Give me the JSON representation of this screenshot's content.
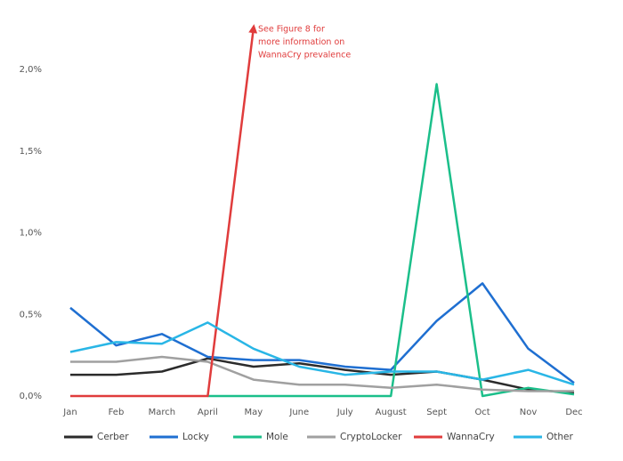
{
  "chart_data": {
    "type": "line",
    "annotation": [
      "See Figure 8 for",
      "more information on",
      "WannaCry prevalence"
    ],
    "categories": [
      "Jan",
      "Feb",
      "March",
      "April",
      "May",
      "June",
      "July",
      "August",
      "Sept",
      "Oct",
      "Nov",
      "Dec"
    ],
    "ylim": [
      0,
      2.3
    ],
    "yticks": [
      {
        "value": 0,
        "label": "0,0%"
      },
      {
        "value": 0.5,
        "label": "0,5%"
      },
      {
        "value": 1,
        "label": "1,0%"
      },
      {
        "value": 1.5,
        "label": "1,5%"
      },
      {
        "value": 2,
        "label": "2,0%"
      }
    ],
    "grid": false,
    "legend": "bottom",
    "series": [
      {
        "name": "Cerber",
        "color": "#2b2b2b",
        "values": [
          0.13,
          0.13,
          0.15,
          0.23,
          0.18,
          0.2,
          0.16,
          0.13,
          0.15,
          0.1,
          0.04,
          0.02
        ]
      },
      {
        "name": "Locky",
        "color": "#1f6fd1",
        "values": [
          0.54,
          0.31,
          0.38,
          0.24,
          0.22,
          0.22,
          0.18,
          0.16,
          0.46,
          0.69,
          0.29,
          0.08
        ]
      },
      {
        "name": "Mole",
        "color": "#1bbf8a",
        "values": [
          null,
          null,
          null,
          0,
          0,
          0,
          0,
          0,
          1.91,
          0,
          0.05,
          0.01
        ]
      },
      {
        "name": "CryptoLocker",
        "color": "#a0a0a0",
        "values": [
          0.21,
          0.21,
          0.24,
          0.21,
          0.1,
          0.07,
          0.07,
          0.05,
          0.07,
          0.04,
          0.03,
          0.03
        ]
      },
      {
        "name": "WannaCry",
        "color": "#e03c3c",
        "values": [
          0,
          0,
          0,
          0,
          2.25,
          null,
          null,
          null,
          null,
          null,
          null,
          null
        ]
      },
      {
        "name": "Other",
        "color": "#29b6e6",
        "values": [
          0.27,
          0.33,
          0.32,
          0.45,
          0.29,
          0.18,
          0.13,
          0.15,
          0.15,
          0.1,
          0.16,
          0.07
        ]
      }
    ]
  }
}
